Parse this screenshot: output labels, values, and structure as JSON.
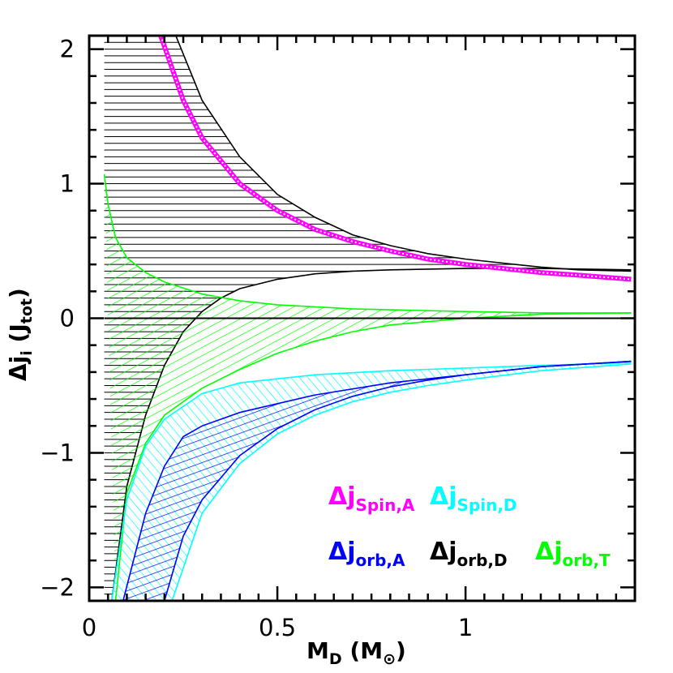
{
  "chart_data": {
    "type": "line",
    "xlabel": {
      "main": "M",
      "sub": "D",
      "unit": "(M",
      "unit_symbol": "⊙",
      "unit_close": ")"
    },
    "ylabel": {
      "main": "Δj",
      "sub": "i",
      "unit": "(J",
      "unit_sub": "tot",
      "unit_close": ")"
    },
    "xlim": [
      0,
      1.45
    ],
    "ylim": [
      -2.1,
      2.1
    ],
    "x_ticks": [
      {
        "value": 0,
        "label": "0"
      },
      {
        "value": 0.5,
        "label": "0.5"
      },
      {
        "value": 1,
        "label": "1"
      }
    ],
    "y_ticks": [
      {
        "value": -2,
        "label": "−2"
      },
      {
        "value": -1,
        "label": "−1"
      },
      {
        "value": 0,
        "label": "0"
      },
      {
        "value": 1,
        "label": "1"
      },
      {
        "value": 2,
        "label": "2"
      }
    ],
    "zero_line": true,
    "colors": {
      "spin_A": "#ff00ff",
      "spin_D": "#00ffff",
      "orb_A": "#0000ff",
      "orb_D": "#000000",
      "orb_T": "#00ff00"
    },
    "series": [
      {
        "name": "Δj Spin,A",
        "key": "spin_A",
        "x_range": [
          0.19,
          1.44
        ],
        "points": [
          [
            0.19,
            2.1
          ],
          [
            0.25,
            1.62
          ],
          [
            0.3,
            1.34
          ],
          [
            0.4,
            1.0
          ],
          [
            0.5,
            0.8
          ],
          [
            0.6,
            0.66
          ],
          [
            0.7,
            0.57
          ],
          [
            0.8,
            0.5
          ],
          [
            0.9,
            0.44
          ],
          [
            1.0,
            0.4
          ],
          [
            1.1,
            0.37
          ],
          [
            1.2,
            0.34
          ],
          [
            1.3,
            0.32
          ],
          [
            1.44,
            0.29
          ]
        ]
      },
      {
        "name": "Δj Spin,D",
        "key": "spin_D",
        "upper": [
          [
            0.06,
            -2.1
          ],
          [
            0.1,
            -1.35
          ],
          [
            0.15,
            -0.95
          ],
          [
            0.2,
            -0.75
          ],
          [
            0.3,
            -0.56
          ],
          [
            0.4,
            -0.48
          ],
          [
            0.6,
            -0.42
          ],
          [
            0.8,
            -0.39
          ],
          [
            1.0,
            -0.37
          ],
          [
            1.2,
            -0.35
          ],
          [
            1.44,
            -0.33
          ]
        ],
        "lower": [
          [
            0.22,
            -2.1
          ],
          [
            0.3,
            -1.45
          ],
          [
            0.4,
            -1.08
          ],
          [
            0.5,
            -0.86
          ],
          [
            0.6,
            -0.72
          ],
          [
            0.7,
            -0.62
          ],
          [
            0.8,
            -0.55
          ],
          [
            0.9,
            -0.5
          ],
          [
            1.0,
            -0.46
          ],
          [
            1.2,
            -0.39
          ],
          [
            1.44,
            -0.34
          ]
        ]
      },
      {
        "name": "Δj orb,A",
        "key": "orb_A",
        "upper": [
          [
            0.09,
            -2.1
          ],
          [
            0.15,
            -1.45
          ],
          [
            0.2,
            -1.1
          ],
          [
            0.25,
            -0.88
          ],
          [
            0.3,
            -0.8
          ],
          [
            0.4,
            -0.7
          ],
          [
            0.6,
            -0.57
          ],
          [
            0.8,
            -0.48
          ],
          [
            1.0,
            -0.42
          ],
          [
            1.2,
            -0.36
          ],
          [
            1.44,
            -0.32
          ]
        ],
        "lower": [
          [
            0.2,
            -2.1
          ],
          [
            0.25,
            -1.62
          ],
          [
            0.3,
            -1.35
          ],
          [
            0.4,
            -1.02
          ],
          [
            0.5,
            -0.82
          ],
          [
            0.6,
            -0.68
          ],
          [
            0.7,
            -0.58
          ],
          [
            0.8,
            -0.51
          ],
          [
            0.9,
            -0.46
          ],
          [
            1.0,
            -0.42
          ],
          [
            1.2,
            -0.36
          ],
          [
            1.44,
            -0.32
          ]
        ]
      },
      {
        "name": "Δj orb,D",
        "key": "orb_D",
        "upper": [
          [
            0.23,
            2.1
          ],
          [
            0.3,
            1.62
          ],
          [
            0.4,
            1.2
          ],
          [
            0.5,
            0.92
          ],
          [
            0.6,
            0.75
          ],
          [
            0.7,
            0.62
          ],
          [
            0.8,
            0.54
          ],
          [
            0.9,
            0.48
          ],
          [
            1.0,
            0.44
          ],
          [
            1.1,
            0.41
          ],
          [
            1.2,
            0.38
          ],
          [
            1.3,
            0.36
          ],
          [
            1.44,
            0.35
          ]
        ],
        "lower": [
          [
            0.06,
            -2.1
          ],
          [
            0.1,
            -1.25
          ],
          [
            0.15,
            -0.72
          ],
          [
            0.2,
            -0.35
          ],
          [
            0.25,
            -0.1
          ],
          [
            0.3,
            0.05
          ],
          [
            0.35,
            0.15
          ],
          [
            0.4,
            0.22
          ],
          [
            0.5,
            0.29
          ],
          [
            0.6,
            0.33
          ],
          [
            0.7,
            0.35
          ],
          [
            0.8,
            0.36
          ],
          [
            1.0,
            0.37
          ],
          [
            1.2,
            0.37
          ],
          [
            1.44,
            0.36
          ]
        ]
      },
      {
        "name": "Δj orb,T",
        "key": "orb_T",
        "upper": [
          [
            0.04,
            1.07
          ],
          [
            0.05,
            0.85
          ],
          [
            0.07,
            0.6
          ],
          [
            0.1,
            0.45
          ],
          [
            0.15,
            0.34
          ],
          [
            0.2,
            0.27
          ],
          [
            0.3,
            0.18
          ],
          [
            0.4,
            0.13
          ],
          [
            0.5,
            0.1
          ],
          [
            0.7,
            0.07
          ],
          [
            1.0,
            0.05
          ],
          [
            1.2,
            0.04
          ],
          [
            1.44,
            0.04
          ]
        ],
        "lower": [
          [
            0.07,
            -2.1
          ],
          [
            0.1,
            -1.3
          ],
          [
            0.15,
            -0.93
          ],
          [
            0.2,
            -0.72
          ],
          [
            0.3,
            -0.52
          ],
          [
            0.4,
            -0.38
          ],
          [
            0.5,
            -0.26
          ],
          [
            0.6,
            -0.17
          ],
          [
            0.7,
            -0.1
          ],
          [
            0.8,
            -0.05
          ],
          [
            1.0,
            0.0
          ],
          [
            1.2,
            0.03
          ],
          [
            1.44,
            0.04
          ]
        ]
      }
    ],
    "legend": [
      {
        "key": "spin_A",
        "main": "Δj",
        "sub": "Spin,A"
      },
      {
        "key": "spin_D",
        "main": "Δj",
        "sub": "Spin,D"
      },
      {
        "key": "orb_A",
        "main": "Δj",
        "sub": "orb,A"
      },
      {
        "key": "orb_D",
        "main": "Δj",
        "sub": "orb,D"
      },
      {
        "key": "orb_T",
        "main": "Δj",
        "sub": "orb,T"
      }
    ]
  }
}
